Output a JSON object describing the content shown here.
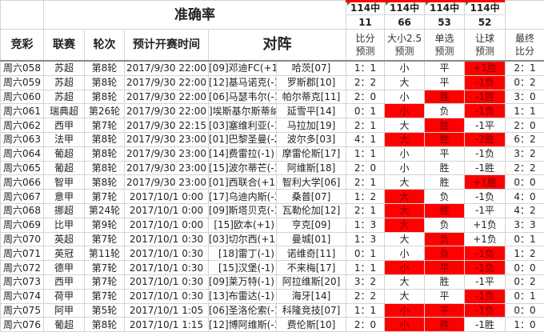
{
  "header": {
    "title": "准确率",
    "accuracy": [
      {
        "label": "114中",
        "value": "11"
      },
      {
        "label": "114中",
        "value": "66"
      },
      {
        "label": "114中",
        "value": "53"
      },
      {
        "label": "114中",
        "value": "52"
      }
    ],
    "columns": {
      "lottery": "竞彩",
      "league": "联赛",
      "round": "轮次",
      "time": "预计开赛时间",
      "match": "对阵",
      "score_pred": [
        "比分",
        "预测"
      ],
      "ou_pred": [
        "大小2.5",
        "预测"
      ],
      "single_pred": [
        "单选",
        "预测"
      ],
      "handicap_pred": [
        "让球",
        "预测"
      ],
      "final": [
        "最终",
        "比分"
      ]
    }
  },
  "colors": {
    "highlight": "#ff0000",
    "marker": "#1a8a1a"
  },
  "rows": [
    {
      "id": "周六058",
      "league": "苏超",
      "round": "第8轮",
      "time": "2017/9/30 22:00",
      "home": "[09]邓迪FC(+1)",
      "away": "哈茨[07]",
      "score": "1：1",
      "ou": "小",
      "single": "平",
      "hcp": "+1胜",
      "final": "2：1",
      "red": [
        false,
        false,
        true
      ]
    },
    {
      "id": "周六059",
      "league": "苏超",
      "round": "第8轮",
      "time": "2017/9/30 22:00",
      "home": "[12]基马诺克(-1)",
      "away": "罗斯郡[10]",
      "score": "2：2",
      "ou": "大",
      "single": "平",
      "hcp": "-1负",
      "final": "0：2",
      "red": [
        false,
        false,
        true
      ]
    },
    {
      "id": "周六060",
      "league": "苏超",
      "round": "第8轮",
      "time": "2017/9/30 22:00",
      "home": "[06]马瑟韦尔(-1)",
      "away": "帕尔蒂克[11]",
      "score": "2：0",
      "ou": "小",
      "single": "胜",
      "hcp": "-1胜",
      "final": "3：0",
      "red": [
        false,
        true,
        true
      ]
    },
    {
      "id": "周六061",
      "league": "瑞典超",
      "round": "第26轮",
      "time": "2017/9/30 22:00",
      "home": "]埃斯基尔斯蒂纳(",
      "away": "延雪平[14]",
      "score": "0：1",
      "ou": "小",
      "single": "负",
      "hcp": "-1负",
      "final": "1：1",
      "red": [
        true,
        false,
        true
      ]
    },
    {
      "id": "周六062",
      "league": "西甲",
      "round": "第7轮",
      "time": "2017/9/30 22:15",
      "home": "[03]塞维利亚(-1)",
      "away": "马拉加[19]",
      "score": "2：1",
      "ou": "大",
      "single": "胜",
      "hcp": "-1平",
      "final": "2：0",
      "red": [
        false,
        true,
        false
      ]
    },
    {
      "id": "周六063",
      "league": "法甲",
      "round": "第8轮",
      "time": "2017/9/30 23:00",
      "home": "[01]巴黎圣曼(-2)",
      "away": "波尔多[03]",
      "score": "4：1",
      "ou": "大",
      "single": "胜",
      "hcp": "-2胜",
      "final": "6：2",
      "red": [
        true,
        true,
        true
      ]
    },
    {
      "id": "周六064",
      "league": "葡超",
      "round": "第8轮",
      "time": "2017/9/30 23:00",
      "home": "[14]费雷拉(-1)",
      "away": "摩雷伦斯[17]",
      "score": "1：1",
      "ou": "小",
      "single": "平",
      "hcp": "-1负",
      "final": "3：2",
      "red": [
        false,
        false,
        false
      ]
    },
    {
      "id": "周六065",
      "league": "葡超",
      "round": "第8轮",
      "time": "2017/9/30 23:00",
      "home": "[15]波尔蒂芒(-1)",
      "away": "阿维斯[18]",
      "score": "2：0",
      "ou": "小",
      "single": "胜",
      "hcp": "-1胜",
      "final": "2：2",
      "red": [
        false,
        false,
        false
      ]
    },
    {
      "id": "周六066",
      "league": "智甲",
      "round": "第8轮",
      "time": "2017/9/30 23:00",
      "home": "[01]西联合(+1)",
      "away": "智利大学[06]",
      "score": "2：1",
      "ou": "大",
      "single": "胜",
      "hcp": "+1胜",
      "final": "0：0",
      "red": [
        false,
        false,
        true
      ]
    },
    {
      "id": "周六067",
      "league": "意甲",
      "round": "第7轮",
      "time": "2017/10/1 0:00",
      "home": "[17]乌迪内斯(-1)",
      "away": "桑普[07]",
      "score": "1：2",
      "ou": "大",
      "single": "负",
      "hcp": "-1负",
      "final": "4：0",
      "red": [
        true,
        false,
        false
      ]
    },
    {
      "id": "周六068",
      "league": "挪超",
      "round": "第24轮",
      "time": "2017/10/1 0:00",
      "home": "[09]斯塔贝克(-1)",
      "away": "瓦勒伦加[12]",
      "score": "2：1",
      "ou": "大",
      "single": "胜",
      "hcp": "-1平",
      "final": "4：2",
      "red": [
        true,
        true,
        false
      ]
    },
    {
      "id": "周六069",
      "league": "比甲",
      "round": "第9轮",
      "time": "2017/10/1 0:00",
      "home": "[15]欧本(+1)",
      "away": "亨克[09]",
      "score": "1：3",
      "ou": "大",
      "single": "负",
      "hcp": "+1负",
      "final": "3：3",
      "red": [
        true,
        false,
        false
      ]
    },
    {
      "id": "周六070",
      "league": "英超",
      "round": "第7轮",
      "time": "2017/10/1 0:30",
      "home": "[03]切尔西(+1)",
      "away": "曼城[01]",
      "score": "1：3",
      "ou": "大",
      "single": "负",
      "hcp": "+1负",
      "final": "0：1",
      "red": [
        false,
        true,
        false
      ]
    },
    {
      "id": "周六071",
      "league": "英冠",
      "round": "第11轮",
      "time": "2017/10/1 0:30",
      "home": "[18]雷丁(-1)",
      "away": "诺维奇[11]",
      "score": "0：1",
      "ou": "小",
      "single": "负",
      "hcp": "-1负",
      "final": "1：2",
      "red": [
        false,
        true,
        true
      ]
    },
    {
      "id": "周六072",
      "league": "德甲",
      "round": "第7轮",
      "time": "2017/10/1 0:30",
      "home": "[15]汉堡(-1)",
      "away": "不来梅[17]",
      "score": "1：1",
      "ou": "小",
      "single": "平",
      "hcp": "-1负",
      "final": "0：0",
      "red": [
        true,
        true,
        true
      ]
    },
    {
      "id": "周六073",
      "league": "西甲",
      "round": "第7轮",
      "time": "2017/10/1 0:30",
      "home": "[09]莱万特(-1)",
      "away": "阿拉维斯[20]",
      "score": "3：2",
      "ou": "大",
      "single": "胜",
      "hcp": "-1平",
      "final": "0：2",
      "red": [
        false,
        false,
        false
      ]
    },
    {
      "id": "周六074",
      "league": "荷甲",
      "round": "第7轮",
      "time": "2017/10/1 0:30",
      "home": "[13]布雷达(-1)",
      "away": "海牙[14]",
      "score": "2：2",
      "ou": "大",
      "single": "平",
      "hcp": "-1负",
      "final": "0：1",
      "red": [
        false,
        false,
        true
      ]
    },
    {
      "id": "周六075",
      "league": "阿甲",
      "round": "第5轮",
      "time": "2017/10/1 1:05",
      "home": "[06]圣洛伦索(-1)",
      "away": "科隆竞技[07]",
      "score": "1：1",
      "ou": "小",
      "single": "平",
      "hcp": "-1负",
      "final": "0：0",
      "red": [
        true,
        true,
        true
      ]
    },
    {
      "id": "周六076",
      "league": "葡超",
      "round": "第8轮",
      "time": "2017/10/1 1:15",
      "home": "[12]博阿维斯(-1)",
      "away": "费伦斯[10]",
      "score": "2：0",
      "ou": "小",
      "single": "胜",
      "hcp": "-1胜",
      "final": "1：0",
      "red": [
        true,
        true,
        false
      ]
    }
  ]
}
